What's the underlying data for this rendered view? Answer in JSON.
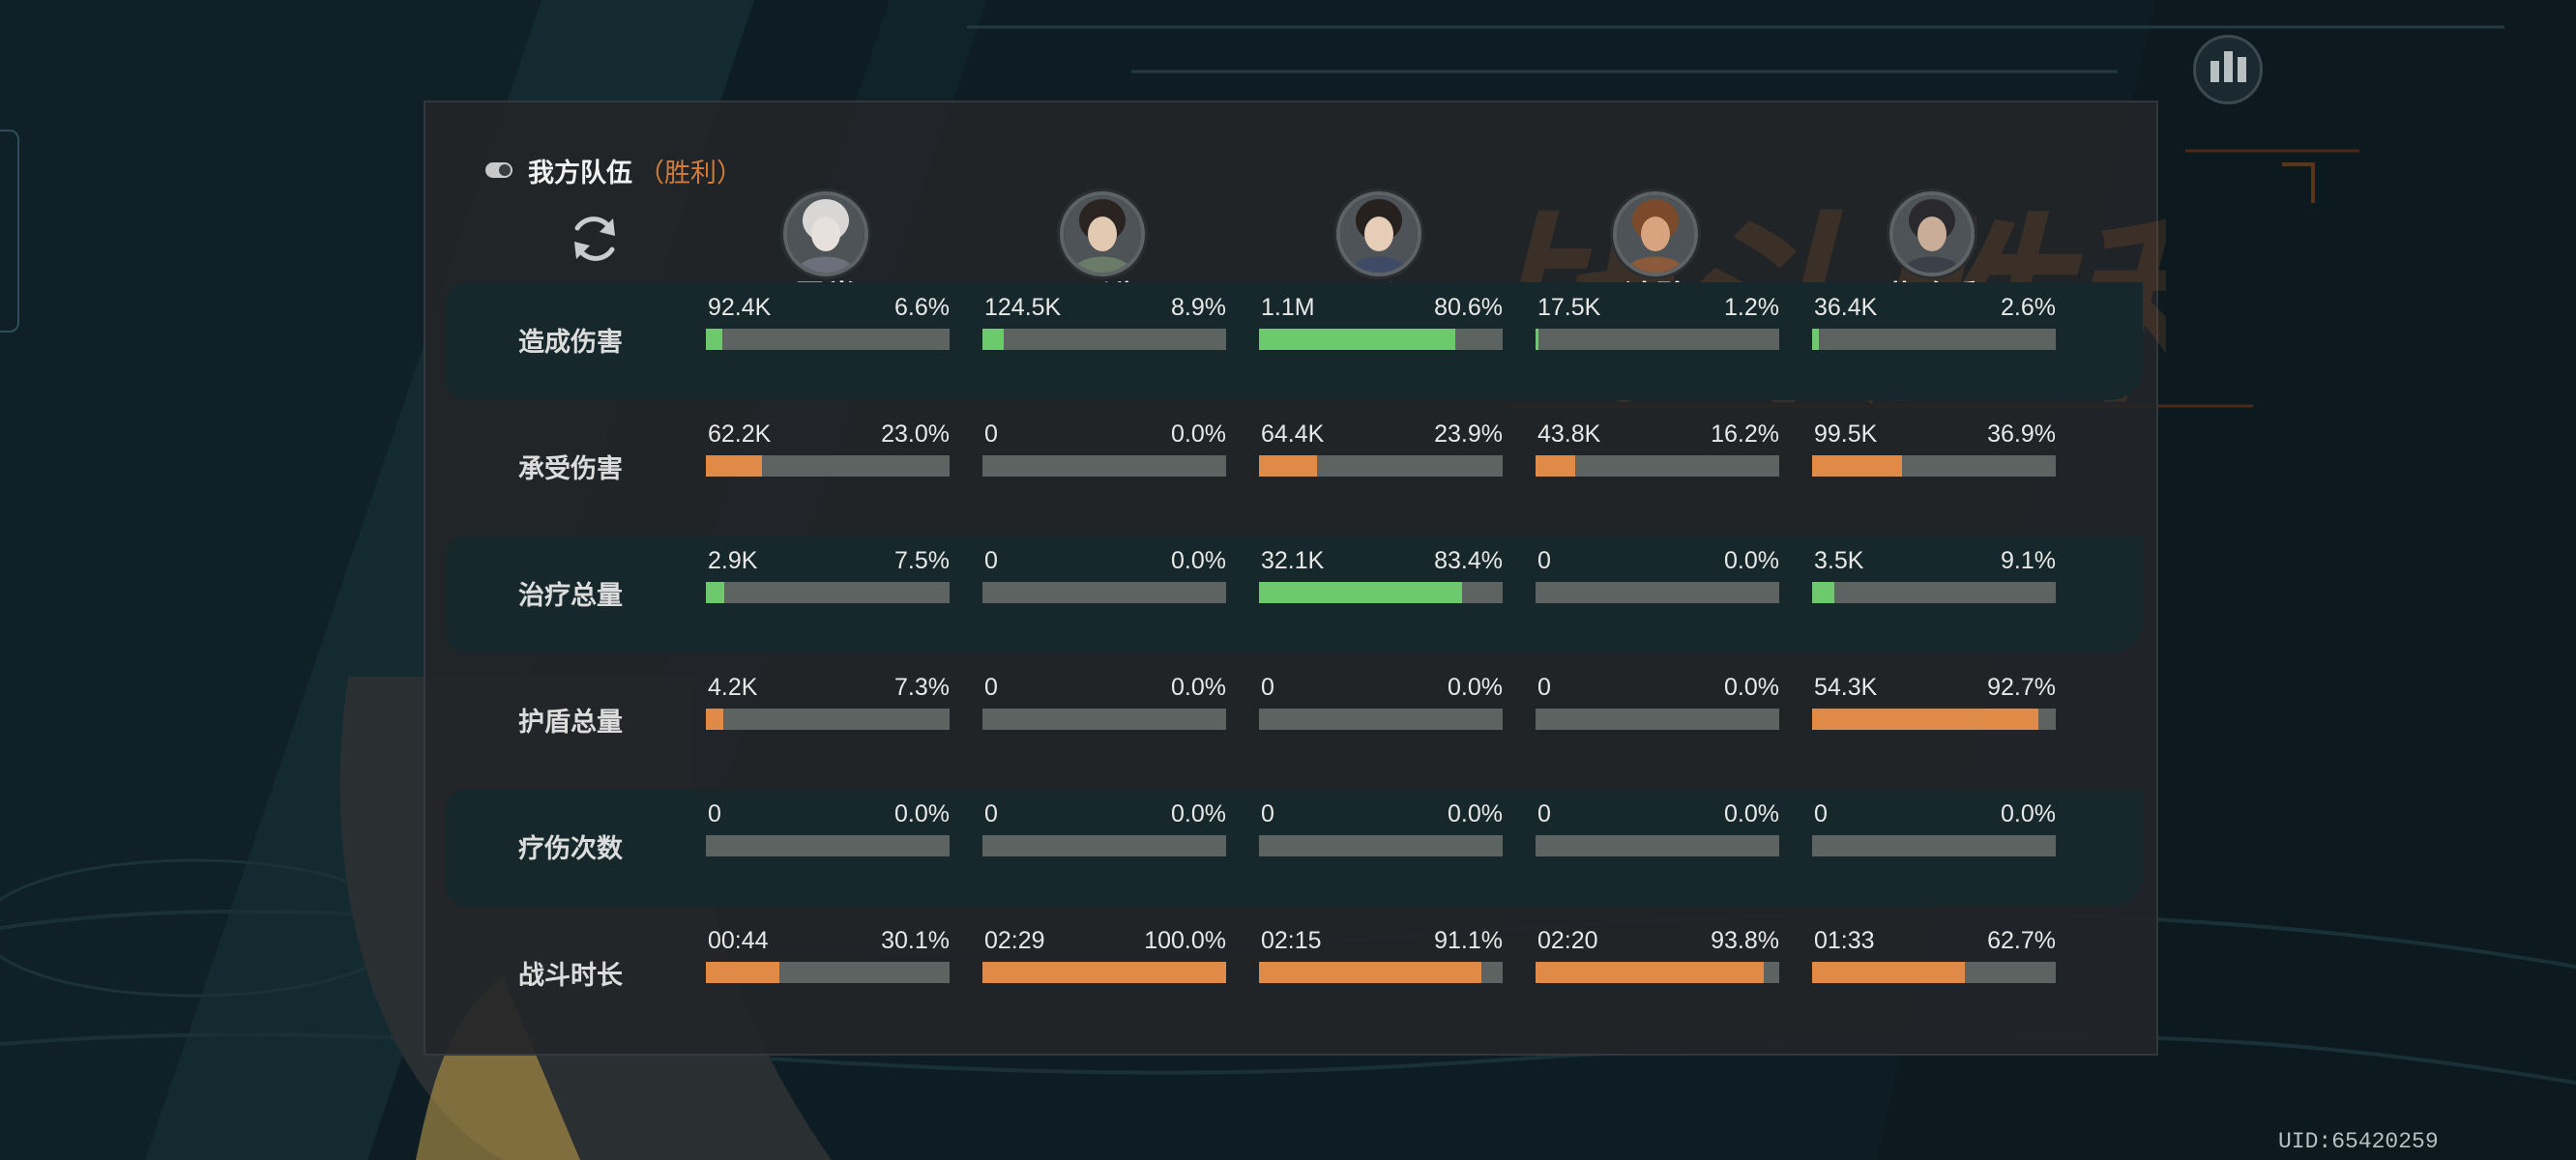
{
  "team": {
    "name": "我方队伍",
    "result": "（胜利）"
  },
  "heroes": [
    {
      "name": "霓裳"
    },
    {
      "name": "灵湫"
    },
    {
      "name": "屈心"
    },
    {
      "name": "池鹭"
    },
    {
      "name": "燕路重"
    }
  ],
  "stats": [
    {
      "label": "造成伤害",
      "bar_color": "#6cc96c",
      "cells": [
        {
          "value": "92.4K",
          "percent": "6.6%"
        },
        {
          "value": "124.5K",
          "percent": "8.9%"
        },
        {
          "value": "1.1M",
          "percent": "80.6%"
        },
        {
          "value": "17.5K",
          "percent": "1.2%"
        },
        {
          "value": "36.4K",
          "percent": "2.6%"
        }
      ]
    },
    {
      "label": "承受伤害",
      "bar_color": "#e08a48",
      "cells": [
        {
          "value": "62.2K",
          "percent": "23.0%"
        },
        {
          "value": "0",
          "percent": "0.0%"
        },
        {
          "value": "64.4K",
          "percent": "23.9%"
        },
        {
          "value": "43.8K",
          "percent": "16.2%"
        },
        {
          "value": "99.5K",
          "percent": "36.9%"
        }
      ]
    },
    {
      "label": "治疗总量",
      "bar_color": "#6cc96c",
      "cells": [
        {
          "value": "2.9K",
          "percent": "7.5%"
        },
        {
          "value": "0",
          "percent": "0.0%"
        },
        {
          "value": "32.1K",
          "percent": "83.4%"
        },
        {
          "value": "0",
          "percent": "0.0%"
        },
        {
          "value": "3.5K",
          "percent": "9.1%"
        }
      ]
    },
    {
      "label": "护盾总量",
      "bar_color": "#e08a48",
      "cells": [
        {
          "value": "4.2K",
          "percent": "7.3%"
        },
        {
          "value": "0",
          "percent": "0.0%"
        },
        {
          "value": "0",
          "percent": "0.0%"
        },
        {
          "value": "0",
          "percent": "0.0%"
        },
        {
          "value": "54.3K",
          "percent": "92.7%"
        }
      ]
    },
    {
      "label": "疗伤次数",
      "bar_color": "#6cc96c",
      "cells": [
        {
          "value": "0",
          "percent": "0.0%"
        },
        {
          "value": "0",
          "percent": "0.0%"
        },
        {
          "value": "0",
          "percent": "0.0%"
        },
        {
          "value": "0",
          "percent": "0.0%"
        },
        {
          "value": "0",
          "percent": "0.0%"
        }
      ]
    },
    {
      "label": "战斗时长",
      "bar_color": "#e08a48",
      "cells": [
        {
          "value": "00:44",
          "percent": "30.1%"
        },
        {
          "value": "02:29",
          "percent": "100.0%"
        },
        {
          "value": "02:15",
          "percent": "91.1%"
        },
        {
          "value": "02:20",
          "percent": "93.8%"
        },
        {
          "value": "01:33",
          "percent": "62.7%"
        }
      ]
    }
  ],
  "background_text": "战斗胜利",
  "uid": "UID:65420259",
  "icons": {
    "toggle": "toggle-icon",
    "refresh": "refresh-icon",
    "stats": "bar-chart-icon"
  },
  "colors": {
    "victory": "#d27b3a",
    "damage_bar": "#6cc96c",
    "taken_bar": "#e08a48",
    "track": "#5d6360"
  }
}
